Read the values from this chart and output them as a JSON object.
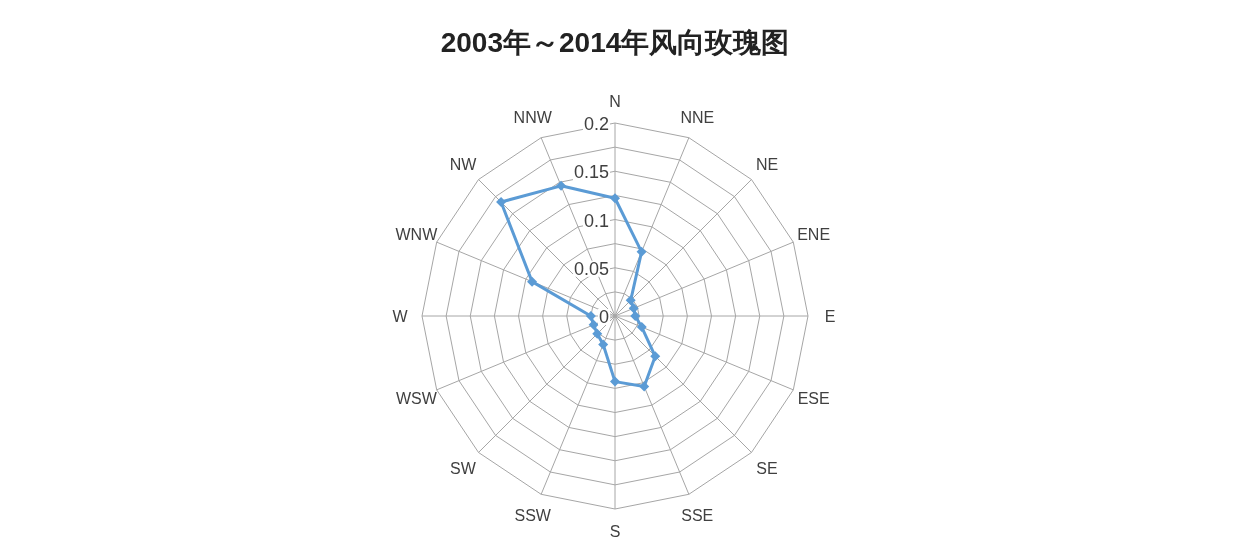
{
  "chart_data": {
    "type": "radar",
    "title": "2003年～2014年风向玫瑰图",
    "categories": [
      "N",
      "NNE",
      "NE",
      "ENE",
      "E",
      "ESE",
      "SE",
      "SSE",
      "S",
      "SSW",
      "SW",
      "WSW",
      "W",
      "WNW",
      "NW",
      "NNW"
    ],
    "series": [
      {
        "color": "#5b9bd5",
        "values": [
          0.122,
          0.072,
          0.023,
          0.021,
          0.021,
          0.03,
          0.059,
          0.079,
          0.068,
          0.032,
          0.026,
          0.024,
          0.025,
          0.093,
          0.167,
          0.146
        ]
      }
    ],
    "ylim": [
      0,
      0.2
    ],
    "yticks": [
      0,
      0.05,
      0.1,
      0.15,
      0.2
    ],
    "marker": "diamond",
    "line_style": "solid",
    "grid": true
  }
}
